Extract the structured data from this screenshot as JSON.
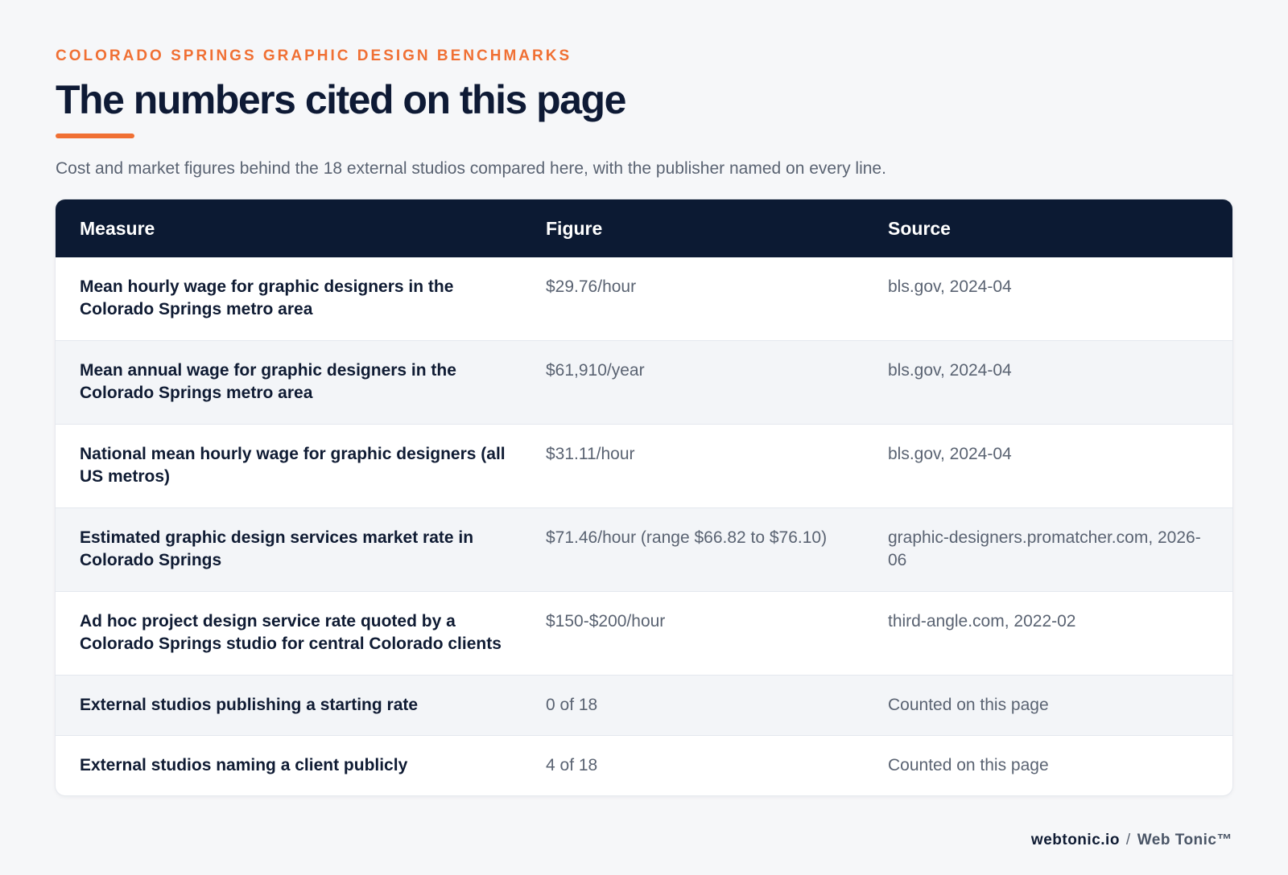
{
  "header": {
    "eyebrow": "COLORADO SPRINGS GRAPHIC DESIGN BENCHMARKS",
    "title": "The numbers cited on this page",
    "subtitle": "Cost and market figures behind the 18 external studios compared here, with the publisher named on every line."
  },
  "table": {
    "columns": [
      "Measure",
      "Figure",
      "Source"
    ],
    "rows": [
      {
        "measure": "Mean hourly wage for graphic designers in the Colorado Springs metro area",
        "figure": "$29.76/hour",
        "source": "bls.gov, 2024-04"
      },
      {
        "measure": "Mean annual wage for graphic designers in the Colorado Springs metro area",
        "figure": "$61,910/year",
        "source": "bls.gov, 2024-04"
      },
      {
        "measure": "National mean hourly wage for graphic designers (all US metros)",
        "figure": "$31.11/hour",
        "source": "bls.gov, 2024-04"
      },
      {
        "measure": "Estimated graphic design services market rate in Colorado Springs",
        "figure": "$71.46/hour (range $66.82 to $76.10)",
        "source": "graphic-designers.promatcher.com, 2026-06"
      },
      {
        "measure": "Ad hoc project design service rate quoted by a Colorado Springs studio for central Colorado clients",
        "figure": "$150-$200/hour",
        "source": "third-angle.com, 2022-02"
      },
      {
        "measure": "External studios publishing a starting rate",
        "figure": "0 of 18",
        "source": "Counted on this page"
      },
      {
        "measure": "External studios naming a client publicly",
        "figure": "4 of 18",
        "source": "Counted on this page"
      }
    ]
  },
  "footer": {
    "domain": "webtonic.io",
    "separator": "/",
    "brand": "Web Tonic™"
  },
  "colors": {
    "accent": "#f07034",
    "header_bg": "#0c1a33",
    "page_bg": "#f6f7f9"
  }
}
